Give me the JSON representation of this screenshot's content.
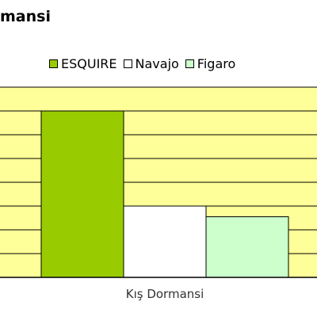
{
  "chart_data": {
    "type": "bar",
    "title": "mansi",
    "categories": [
      "Kış Dormansi"
    ],
    "series": [
      {
        "name": "ESQUIRE",
        "color": "#99cc00",
        "values": [
          7.0
        ]
      },
      {
        "name": "Navajo",
        "color": "#ffffff",
        "values": [
          3.0
        ]
      },
      {
        "name": "Figaro",
        "color": "#ccffcc",
        "values": [
          2.55
        ]
      }
    ],
    "ylim": [
      0,
      8
    ],
    "ytick_step": 1,
    "grid": true,
    "legend_position": "top",
    "plot_background": "#ffff99"
  }
}
